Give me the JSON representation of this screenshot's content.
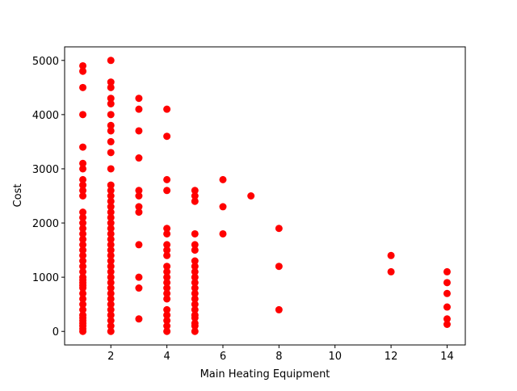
{
  "chart_data": {
    "type": "scatter",
    "xlabel": "Main Heating Equipment",
    "ylabel": "Cost",
    "xlim": [
      0.35,
      14.65
    ],
    "ylim": [
      -250,
      5250
    ],
    "xticks": [
      2,
      4,
      6,
      8,
      10,
      12,
      14
    ],
    "yticks": [
      0,
      1000,
      2000,
      3000,
      4000,
      5000
    ],
    "series": [
      {
        "color": "#ff0000",
        "x": [
          1,
          1,
          1,
          1,
          1,
          1,
          1,
          1,
          1,
          1,
          1,
          1,
          1,
          1,
          1,
          1,
          1,
          1,
          1,
          1,
          1,
          1,
          1,
          1,
          1,
          1,
          1,
          1,
          1,
          1,
          1,
          1,
          1,
          1,
          1,
          1,
          1,
          1,
          1,
          2,
          2,
          2,
          2,
          2,
          2,
          2,
          2,
          2,
          2,
          2,
          2,
          2,
          2,
          2,
          2,
          2,
          2,
          2,
          2,
          2,
          2,
          2,
          2,
          2,
          2,
          2,
          2,
          2,
          2,
          2,
          2,
          2,
          2,
          2,
          2,
          2,
          2,
          2,
          3,
          3,
          3,
          3,
          3,
          3,
          3,
          3,
          3,
          3,
          3,
          3,
          4,
          4,
          4,
          4,
          4,
          4,
          4,
          4,
          4,
          4,
          4,
          4,
          4,
          4,
          4,
          4,
          4,
          4,
          4,
          4,
          4,
          5,
          5,
          5,
          5,
          5,
          5,
          5,
          5,
          5,
          5,
          5,
          5,
          5,
          5,
          5,
          5,
          5,
          5,
          5,
          5,
          5,
          6,
          6,
          6,
          7,
          8,
          8,
          8,
          12,
          12,
          14,
          14,
          14,
          14,
          14,
          14
        ],
        "y": [
          4900,
          4800,
          4500,
          4000,
          3400,
          3100,
          3000,
          2800,
          2700,
          2600,
          2500,
          2200,
          2100,
          2000,
          1900,
          1800,
          1700,
          1600,
          1500,
          1400,
          1300,
          1200,
          1100,
          1000,
          950,
          900,
          850,
          800,
          700,
          600,
          500,
          400,
          300,
          250,
          200,
          150,
          100,
          50,
          0,
          5000,
          4600,
          4500,
          4300,
          4200,
          4000,
          3800,
          3700,
          3500,
          3300,
          3000,
          2700,
          2600,
          2500,
          2400,
          2300,
          2200,
          2100,
          2000,
          1900,
          1800,
          1700,
          1600,
          1500,
          1400,
          1300,
          1200,
          1100,
          1000,
          900,
          800,
          700,
          600,
          500,
          400,
          300,
          200,
          100,
          0,
          4300,
          4100,
          3700,
          3200,
          2600,
          2500,
          2300,
          2200,
          1600,
          1000,
          800,
          230,
          4100,
          3600,
          2800,
          2600,
          1900,
          1800,
          1600,
          1500,
          1400,
          1200,
          1100,
          1000,
          900,
          800,
          700,
          600,
          400,
          300,
          200,
          100,
          0,
          2600,
          2500,
          2400,
          1800,
          1600,
          1500,
          1300,
          1200,
          1100,
          1000,
          900,
          800,
          700,
          600,
          500,
          400,
          300,
          250,
          150,
          100,
          0,
          2800,
          2300,
          1800,
          2500,
          1900,
          1200,
          400,
          1400,
          1100,
          1100,
          900,
          700,
          450,
          230,
          130
        ]
      }
    ]
  }
}
